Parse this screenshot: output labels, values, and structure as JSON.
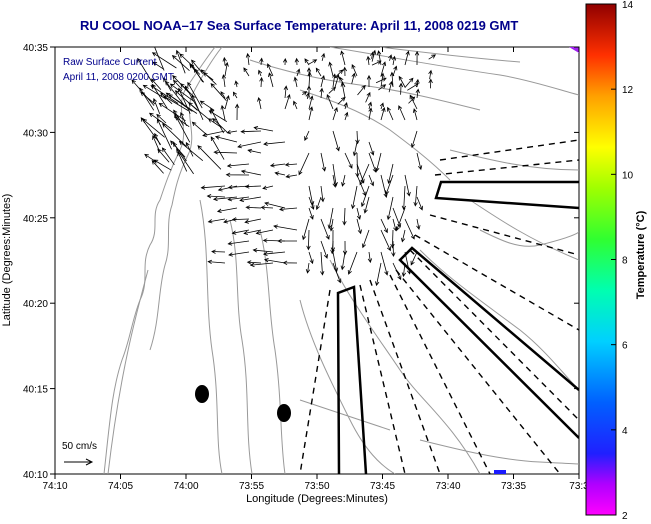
{
  "title": "RU COOL  NOAA–17  Sea Surface Temperature:  April 11, 2008 0219 GMT",
  "legend_text": [
    "Raw Surface Current",
    "April 11, 2008 0200 GMT"
  ],
  "scale_label": "50 cm/s",
  "axes": {
    "xlabel": "Longitude (Degrees:Minutes)",
    "ylabel": "Latitude (Degrees:Minutes)",
    "xticks": [
      "74:10",
      "74:05",
      "74:00",
      "73:55",
      "73:50",
      "73:45",
      "73:40",
      "73:35",
      "73:3"
    ],
    "yticks": [
      "40:35",
      "40:30",
      "40:25",
      "40:20",
      "40:15",
      "40:10"
    ]
  },
  "colorbar": {
    "label": "Temperature (°C)",
    "ticks": [
      "14",
      "12",
      "10",
      "8",
      "6",
      "4",
      "2"
    ],
    "min": 2,
    "max": 14
  },
  "colors": {
    "title": "#00008b",
    "legend": "#00008b",
    "land_contour": "#999999",
    "vectors": "#000000"
  }
}
